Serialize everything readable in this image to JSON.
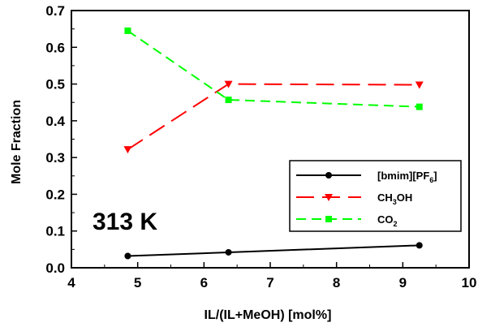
{
  "chart_data": {
    "type": "line",
    "xlabel": "IL/(IL+MeOH) [mol%]",
    "ylabel": "Mole Fraction",
    "xlim": [
      4,
      10
    ],
    "ylim": [
      0.0,
      0.7
    ],
    "x_ticks": [
      "4",
      "5",
      "6",
      "7",
      "8",
      "9",
      "10"
    ],
    "y_ticks": [
      "0.0",
      "0.1",
      "0.2",
      "0.3",
      "0.4",
      "0.5",
      "0.6",
      "0.7"
    ],
    "grid": false,
    "legend_placement": "right",
    "annotation": "313 K",
    "x": [
      4.85,
      6.37,
      9.25
    ],
    "series": [
      {
        "name_main": "[bmim][PF",
        "name_sub": "6",
        "name_tail": "]",
        "values": [
          0.032,
          0.042,
          0.061
        ],
        "color": "#000000",
        "dash": "solid",
        "marker": "circle"
      },
      {
        "name_main": "CH",
        "name_sub": "3",
        "name_tail": "OH",
        "values": [
          0.322,
          0.5,
          0.498
        ],
        "color": "#ff0000",
        "dash": "long-dash",
        "marker": "triangle-down"
      },
      {
        "name_main": "CO",
        "name_sub": "2",
        "name_tail": "",
        "values": [
          0.645,
          0.457,
          0.438
        ],
        "color": "#00ff00",
        "dash": "dash",
        "marker": "square"
      }
    ]
  }
}
